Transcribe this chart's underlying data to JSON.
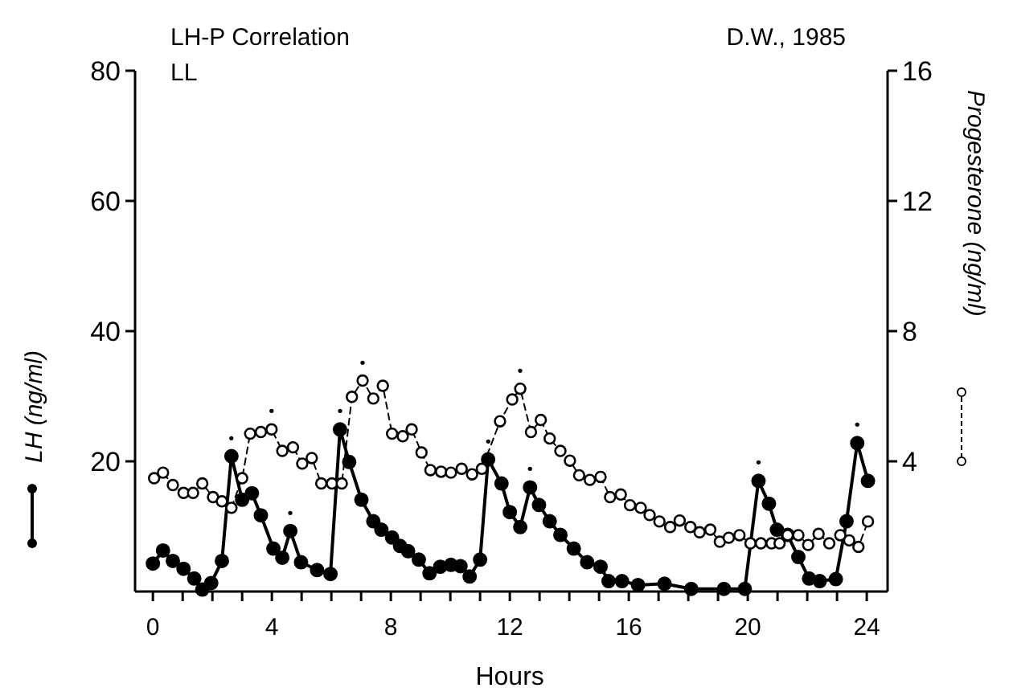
{
  "chart_data": {
    "type": "line",
    "title": "LH-P Correlation",
    "subtitle": "LL",
    "xlabel": "Hours",
    "ylabel": "LH (ng/ml)",
    "y2label": "Progesterone (ng/ml)",
    "annotations": [
      "D.W., 1985",
      {
        "text": "•",
        "x": 2.64,
        "y": 20.8
      },
      {
        "text": "•",
        "x": 4.62,
        "y": 9.3
      },
      {
        "text": "•",
        "x": 6.29,
        "y": 24.9
      },
      {
        "text": "•",
        "x": 11.27,
        "y": 20.3
      },
      {
        "text": "•",
        "x": 12.68,
        "y": 16
      },
      {
        "text": "•",
        "x": 20.36,
        "y": 17
      },
      {
        "text": "•",
        "x": 23.68,
        "y": 22.8
      },
      {
        "text": "•",
        "x": 3.99,
        "y": 24.9
      },
      {
        "text": "•",
        "x": 7.05,
        "y": 32.4
      },
      {
        "text": "•",
        "x": 12.35,
        "y": 31.15
      }
    ],
    "xlim": [
      -0.6,
      24.7
    ],
    "xticks": [
      0,
      {
        "value": 1,
        "label": null
      },
      {
        "value": 2,
        "label": null
      },
      {
        "value": 3,
        "label": null
      },
      4,
      {
        "value": 5,
        "label": null
      },
      {
        "value": 6,
        "label": null
      },
      {
        "value": 7,
        "label": null
      },
      8,
      {
        "value": 9,
        "label": null
      },
      {
        "value": 10,
        "label": null
      },
      {
        "value": 11,
        "label": null
      },
      12,
      {
        "value": 13,
        "label": null
      },
      {
        "value": 14,
        "label": null
      },
      {
        "value": 15,
        "label": null
      },
      16,
      {
        "value": 17,
        "label": null
      },
      {
        "value": 18,
        "label": null
      },
      {
        "value": 19,
        "label": null
      },
      20,
      {
        "value": 21,
        "label": null
      },
      {
        "value": 22,
        "label": null
      },
      {
        "value": 23,
        "label": null
      },
      24
    ],
    "ylim": [
      0,
      80
    ],
    "yticks": [
      20,
      40,
      60,
      80
    ],
    "y2lim": [
      0,
      16
    ],
    "y2ticks": [
      4,
      8,
      12,
      16
    ],
    "grid": false,
    "marker": "circle",
    "series": [
      {
        "color": "#000000",
        "line_style": "solid",
        "x": [
          0.0,
          0.34,
          0.67,
          1.03,
          1.39,
          1.66,
          1.96,
          2.32,
          2.64,
          3.0,
          3.33,
          3.63,
          4.05,
          4.35,
          4.62,
          4.98,
          5.52,
          5.97,
          6.29,
          6.6,
          7.01,
          7.41,
          7.68,
          8.04,
          8.31,
          8.58,
          8.94,
          9.3,
          9.66,
          10.02,
          10.34,
          10.65,
          11.0,
          11.27,
          11.72,
          12.0,
          12.35,
          12.68,
          12.98,
          13.34,
          13.7,
          14.15,
          14.6,
          15.05,
          15.32,
          15.77,
          16.31,
          17.2,
          18.1,
          19.2,
          19.9,
          20.36,
          20.71,
          20.98,
          21.34,
          21.7,
          22.06,
          22.42,
          22.96,
          23.32,
          23.68,
          24.04
        ],
        "values": [
          4.3,
          6.3,
          4.7,
          3.5,
          2,
          0.3,
          1.3,
          4.7,
          20.8,
          14.1,
          15.1,
          11.7,
          6.6,
          5.2,
          9.3,
          4.5,
          3.3,
          2.7,
          24.9,
          19.9,
          14.1,
          10.8,
          9.5,
          8.3,
          7,
          6.2,
          4.9,
          2.8,
          3.8,
          4.1,
          3.9,
          2.3,
          4.9,
          20.3,
          16.6,
          12.2,
          9.9,
          16,
          13.3,
          10.8,
          8.7,
          6.6,
          4.5,
          3.8,
          1.6,
          1.6,
          1,
          1.2,
          0.4,
          0.4,
          0.4,
          17,
          13.5,
          9.5,
          8.7,
          5.3,
          2,
          1.6,
          1.9,
          10.8,
          22.8,
          17
        ]
      },
      {
        "color": "#000000",
        "line_style": "dashed",
        "axis": "y2",
        "x": [
          0.04,
          0.34,
          0.67,
          1.03,
          1.35,
          1.66,
          2.02,
          2.32,
          2.64,
          3.0,
          3.27,
          3.63,
          3.99,
          4.35,
          4.71,
          5.02,
          5.34,
          5.66,
          6.02,
          6.35,
          6.69,
          7.05,
          7.41,
          7.73,
          8.04,
          8.4,
          8.7,
          9.03,
          9.33,
          9.69,
          10.02,
          10.38,
          10.73,
          11.06,
          11.67,
          12.08,
          12.35,
          12.71,
          13.04,
          13.34,
          13.7,
          14.02,
          14.33,
          14.69,
          15.05,
          15.37,
          15.73,
          16.04,
          16.4,
          16.7,
          17.03,
          17.39,
          17.71,
          18.07,
          18.38,
          18.74,
          19.06,
          19.36,
          19.72,
          20.09,
          20.44,
          20.8,
          21.07,
          21.34,
          21.7,
          22.03,
          22.38,
          22.74,
          23.11,
          23.41,
          23.72,
          24.04
        ],
        "values": [
          3.48,
          3.65,
          3.27,
          3.03,
          3.03,
          3.32,
          2.9,
          2.77,
          2.57,
          3.48,
          4.85,
          4.9,
          4.98,
          4.32,
          4.43,
          3.93,
          4.1,
          3.32,
          3.32,
          3.32,
          5.98,
          6.48,
          5.93,
          6.32,
          4.85,
          4.77,
          4.98,
          4.27,
          3.73,
          3.68,
          3.65,
          3.77,
          3.6,
          3.77,
          5.23,
          5.9,
          6.23,
          4.9,
          5.27,
          4.7,
          4.32,
          4.02,
          3.57,
          3.43,
          3.52,
          2.9,
          2.98,
          2.65,
          2.57,
          2.35,
          2.15,
          1.98,
          2.18,
          1.98,
          1.82,
          1.9,
          1.53,
          1.65,
          1.73,
          1.48,
          1.48,
          1.48,
          1.48,
          1.73,
          1.73,
          1.43,
          1.77,
          1.48,
          1.73,
          1.57,
          1.37,
          2.15
        ]
      }
    ]
  }
}
